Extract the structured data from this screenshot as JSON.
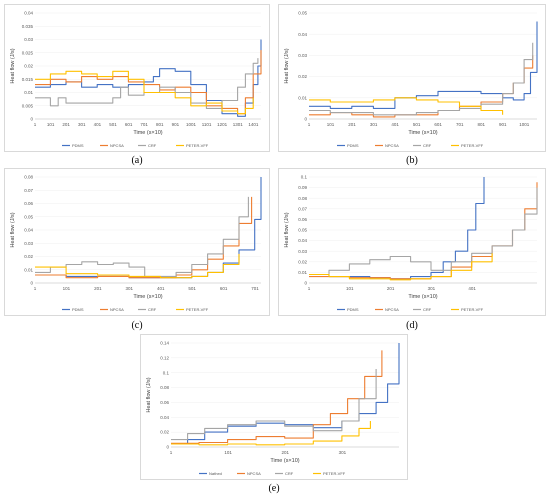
{
  "series_colors": [
    "#4472c4",
    "#ed7d31",
    "#a5a5a5",
    "#ffc000"
  ],
  "chart_data": [
    {
      "type": "line",
      "caption": "(a)",
      "ylabel": "Heat flow (J/s)",
      "xlabel": "Time (s×10)",
      "ylim": [
        0,
        0.04
      ],
      "yticks": [
        0,
        0.005,
        0.01,
        0.015,
        0.02,
        0.025,
        0.03,
        0.035,
        0.04
      ],
      "ytick_labels": [
        "0",
        "0.005",
        "0.01",
        "0.015",
        "0.02",
        "0.025",
        "0.03",
        "0.035",
        "0.04"
      ],
      "xlim": [
        1,
        1450
      ],
      "xticks": [
        1,
        101,
        201,
        301,
        401,
        501,
        601,
        701,
        801,
        901,
        1001,
        1101,
        1201,
        1301,
        1401
      ],
      "xtick_labels": [
        "1",
        "101",
        "201",
        "301",
        "401",
        "501",
        "601",
        "701",
        "801",
        "901",
        "1001",
        "1101",
        "1201",
        "1301",
        "1401"
      ],
      "legend": [
        "PDMS",
        "NPCSA",
        "CRF",
        "PETER-VFF"
      ],
      "series": [
        {
          "name": "PDMS",
          "x": [
            1,
            100,
            200,
            300,
            400,
            500,
            600,
            700,
            760,
            800,
            900,
            1000,
            1100,
            1200,
            1300,
            1350,
            1400,
            1430,
            1450
          ],
          "y": [
            0.012,
            0.013,
            0.014,
            0.012,
            0.013,
            0.012,
            0.013,
            0.014,
            0.016,
            0.019,
            0.018,
            0.013,
            0.007,
            0.002,
            0.001,
            0.006,
            0.013,
            0.02,
            0.03
          ]
        },
        {
          "name": "NPCSA",
          "x": [
            1,
            100,
            200,
            300,
            400,
            500,
            600,
            700,
            800,
            900,
            1000,
            1100,
            1200,
            1300,
            1350,
            1400,
            1450
          ],
          "y": [
            0.013,
            0.015,
            0.014,
            0.016,
            0.015,
            0.016,
            0.014,
            0.013,
            0.011,
            0.012,
            0.01,
            0.005,
            0.004,
            0.002,
            0.008,
            0.017,
            0.026
          ]
        },
        {
          "name": "CRF",
          "x": [
            1,
            100,
            150,
            200,
            300,
            400,
            500,
            550,
            600,
            700,
            800,
            900,
            1000,
            1100,
            1200,
            1300,
            1350,
            1400,
            1430
          ],
          "y": [
            0.008,
            0.005,
            0.008,
            0.006,
            0.006,
            0.006,
            0.008,
            0.012,
            0.009,
            0.01,
            0.012,
            0.01,
            0.006,
            0.004,
            0.007,
            0.012,
            0.017,
            0.021,
            0.023
          ]
        },
        {
          "name": "PETER-VFF",
          "x": [
            1,
            100,
            200,
            300,
            400,
            500,
            600,
            700,
            800,
            900,
            1000,
            1100,
            1200,
            1300,
            1350,
            1400
          ],
          "y": [
            0.015,
            0.017,
            0.018,
            0.017,
            0.016,
            0.018,
            0.015,
            0.01,
            0.01,
            0.008,
            0.005,
            0.006,
            0.003,
            0.002,
            0.004,
            0.008
          ]
        }
      ]
    },
    {
      "type": "line",
      "caption": "(b)",
      "ylabel": "Heat flow (J/s)",
      "xlabel": "Time (s×10)",
      "ylim": [
        0,
        0.05
      ],
      "yticks": [
        0,
        0.01,
        0.02,
        0.03,
        0.04,
        0.05
      ],
      "ytick_labels": [
        "0",
        "0.01",
        "0.02",
        "0.03",
        "0.04",
        "0.05"
      ],
      "xlim": [
        1,
        1060
      ],
      "xticks": [
        1,
        101,
        201,
        301,
        401,
        501,
        601,
        701,
        801,
        901,
        1001
      ],
      "xtick_labels": [
        "1",
        "101",
        "201",
        "301",
        "401",
        "501",
        "601",
        "701",
        "801",
        "901",
        "1001"
      ],
      "legend": [
        "PDMS",
        "NPCSA",
        "CRF",
        "PETER-VFF"
      ],
      "series": [
        {
          "name": "PDMS",
          "x": [
            1,
            100,
            200,
            300,
            400,
            500,
            600,
            700,
            800,
            900,
            950,
            1000,
            1030,
            1060
          ],
          "y": [
            0.006,
            0.005,
            0.006,
            0.005,
            0.01,
            0.011,
            0.013,
            0.013,
            0.012,
            0.01,
            0.009,
            0.012,
            0.022,
            0.046
          ]
        },
        {
          "name": "NPCSA",
          "x": [
            1,
            100,
            200,
            300,
            400,
            500,
            600,
            700,
            800,
            900,
            950,
            1000,
            1040
          ],
          "y": [
            0.002,
            0.003,
            0.002,
            0.001,
            0.002,
            0.002,
            0.004,
            0.006,
            0.008,
            0.012,
            0.017,
            0.024,
            0.03
          ]
        },
        {
          "name": "CRF",
          "x": [
            1,
            100,
            200,
            300,
            400,
            500,
            600,
            700,
            800,
            900,
            950,
            1000,
            1040
          ],
          "y": [
            0.004,
            0.003,
            0.003,
            0.002,
            0.002,
            0.003,
            0.004,
            0.005,
            0.007,
            0.012,
            0.017,
            0.028,
            0.036
          ]
        },
        {
          "name": "PETER-VFF",
          "x": [
            1,
            100,
            200,
            300,
            400,
            500,
            600,
            700,
            800,
            900
          ],
          "y": [
            0.009,
            0.008,
            0.008,
            0.009,
            0.01,
            0.009,
            0.008,
            0.006,
            0.004,
            0.002
          ]
        }
      ]
    },
    {
      "type": "line",
      "caption": "(c)",
      "ylabel": "Heat flow (J/s)",
      "xlabel": "Time (s×10)",
      "ylim": [
        0,
        0.08
      ],
      "yticks": [
        0,
        0.01,
        0.02,
        0.03,
        0.04,
        0.05,
        0.06,
        0.07,
        0.08
      ],
      "ytick_labels": [
        "0",
        "0.01",
        "0.02",
        "0.03",
        "0.04",
        "0.05",
        "0.06",
        "0.07",
        "0.08"
      ],
      "xlim": [
        1,
        720
      ],
      "xticks": [
        1,
        101,
        201,
        301,
        401,
        501,
        601,
        701
      ],
      "xtick_labels": [
        "1",
        "101",
        "201",
        "301",
        "401",
        "501",
        "601",
        "701"
      ],
      "legend": [
        "PDMS",
        "NPCSA",
        "CRF",
        "PETER-VFF"
      ],
      "series": [
        {
          "name": "PDMS",
          "x": [
            1,
            100,
            200,
            300,
            400,
            450,
            500,
            550,
            600,
            650,
            700,
            720
          ],
          "y": [
            0.006,
            0.005,
            0.005,
            0.004,
            0.004,
            0.004,
            0.005,
            0.008,
            0.015,
            0.025,
            0.048,
            0.08
          ]
        },
        {
          "name": "NPCSA",
          "x": [
            1,
            100,
            200,
            300,
            400,
            450,
            500,
            550,
            600,
            650,
            690
          ],
          "y": [
            0.006,
            0.004,
            0.005,
            0.004,
            0.004,
            0.006,
            0.01,
            0.018,
            0.028,
            0.045,
            0.065
          ]
        },
        {
          "name": "CRF",
          "x": [
            1,
            50,
            100,
            150,
            200,
            250,
            300,
            350,
            400,
            450,
            500,
            550,
            600,
            650,
            680
          ],
          "y": [
            0.008,
            0.012,
            0.014,
            0.016,
            0.014,
            0.015,
            0.012,
            0.005,
            0.005,
            0.008,
            0.014,
            0.022,
            0.033,
            0.05,
            0.065
          ]
        },
        {
          "name": "PETER-VFF",
          "x": [
            1,
            100,
            200,
            300,
            400,
            500,
            550,
            600,
            650
          ],
          "y": [
            0.012,
            0.007,
            0.006,
            0.005,
            0.004,
            0.005,
            0.008,
            0.014,
            0.022
          ]
        }
      ]
    },
    {
      "type": "line",
      "caption": "(d)",
      "ylabel": "Heat flow (J/s)",
      "xlabel": "Time (s×10)",
      "ylim": [
        0,
        0.1
      ],
      "yticks": [
        0,
        0.01,
        0.02,
        0.03,
        0.04,
        0.05,
        0.06,
        0.07,
        0.08,
        0.09,
        0.1
      ],
      "ytick_labels": [
        "0",
        "0.01",
        "0.02",
        "0.03",
        "0.04",
        "0.05",
        "0.06",
        "0.07",
        "0.08",
        "0.09",
        "0.1"
      ],
      "xlim": [
        1,
        560
      ],
      "xticks": [
        1,
        101,
        201,
        301,
        401
      ],
      "xtick_labels": [
        "1",
        "101",
        "201",
        "301",
        "401"
      ],
      "legend": [
        "PDMS",
        "NPCSA",
        "CRF",
        "PETER-VFF"
      ],
      "series": [
        {
          "name": "PDMS",
          "x": [
            1,
            50,
            100,
            150,
            200,
            250,
            300,
            330,
            360,
            390,
            410,
            430
          ],
          "y": [
            0.008,
            0.006,
            0.006,
            0.005,
            0.004,
            0.006,
            0.01,
            0.02,
            0.03,
            0.05,
            0.075,
            0.1
          ]
        },
        {
          "name": "NPCSA",
          "x": [
            1,
            100,
            200,
            300,
            350,
            400,
            450,
            500,
            530,
            560
          ],
          "y": [
            0.006,
            0.005,
            0.004,
            0.006,
            0.015,
            0.025,
            0.035,
            0.05,
            0.07,
            0.095
          ]
        },
        {
          "name": "CRF",
          "x": [
            1,
            50,
            100,
            150,
            200,
            250,
            300,
            350,
            400,
            450,
            500,
            530,
            560
          ],
          "y": [
            0.008,
            0.012,
            0.018,
            0.022,
            0.025,
            0.02,
            0.012,
            0.02,
            0.028,
            0.035,
            0.05,
            0.065,
            0.09
          ]
        },
        {
          "name": "PETER-VFF",
          "x": [
            1,
            50,
            100,
            150,
            200,
            250,
            300,
            350,
            400,
            450
          ],
          "y": [
            0.008,
            0.006,
            0.004,
            0.004,
            0.003,
            0.004,
            0.006,
            0.012,
            0.02,
            0.028
          ]
        }
      ]
    },
    {
      "type": "line",
      "caption": "(e)",
      "ylabel": "Heat flow (J/s)",
      "xlabel": "Time (s×10)",
      "ylim": [
        0,
        0.14
      ],
      "yticks": [
        0,
        0.02,
        0.04,
        0.06,
        0.08,
        0.1,
        0.12,
        0.14
      ],
      "ytick_labels": [
        "0",
        "0.02",
        "0.04",
        "0.06",
        "0.08",
        "0.1",
        "0.12",
        "0.14"
      ],
      "xlim": [
        1,
        400
      ],
      "xticks": [
        1,
        101,
        201,
        301
      ],
      "xtick_labels": [
        "1",
        "101",
        "201",
        "301"
      ],
      "legend": [
        "Nathed",
        "NPCSA",
        "CRF",
        "PETER-VFF"
      ],
      "series": [
        {
          "name": "Nathed",
          "x": [
            1,
            30,
            60,
            100,
            150,
            200,
            250,
            300,
            330,
            360,
            380,
            400
          ],
          "y": [
            0.004,
            0.01,
            0.02,
            0.028,
            0.032,
            0.03,
            0.026,
            0.035,
            0.045,
            0.06,
            0.085,
            0.14
          ]
        },
        {
          "name": "NPCSA",
          "x": [
            1,
            50,
            100,
            150,
            200,
            250,
            280,
            310,
            340,
            370
          ],
          "y": [
            0.005,
            0.006,
            0.01,
            0.014,
            0.012,
            0.03,
            0.045,
            0.065,
            0.095,
            0.13
          ]
        },
        {
          "name": "CRF",
          "x": [
            1,
            30,
            60,
            100,
            150,
            200,
            250,
            300,
            330,
            360
          ],
          "y": [
            0.01,
            0.018,
            0.025,
            0.03,
            0.035,
            0.028,
            0.022,
            0.035,
            0.065,
            0.105
          ]
        },
        {
          "name": "PETER-VFF",
          "x": [
            1,
            50,
            100,
            150,
            200,
            250,
            300,
            330,
            350
          ],
          "y": [
            0.004,
            0.003,
            0.004,
            0.003,
            0.004,
            0.008,
            0.015,
            0.025,
            0.035
          ]
        }
      ]
    }
  ]
}
